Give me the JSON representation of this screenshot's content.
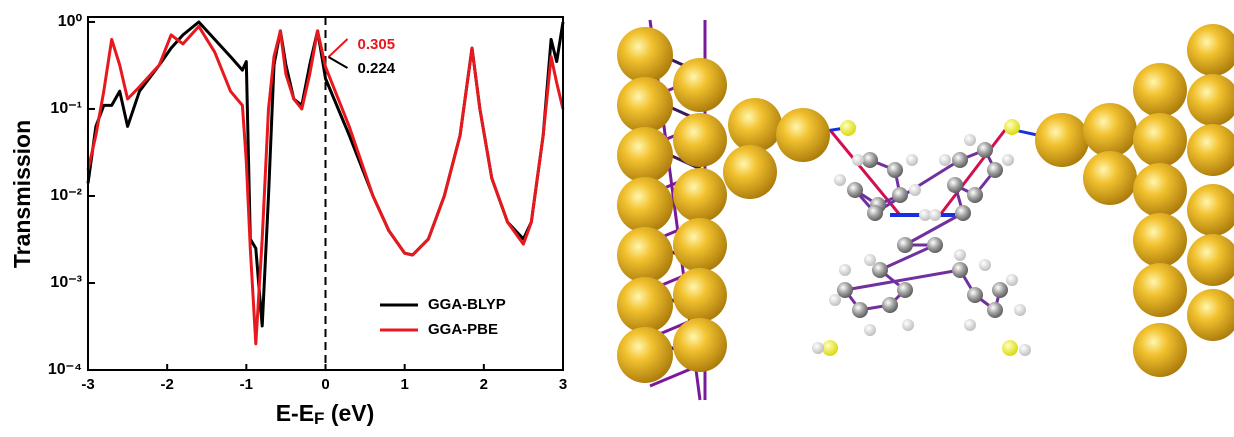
{
  "chart_data": {
    "type": "line",
    "x_label": {
      "main": "E-E",
      "sub": "F",
      "unit": " (eV)"
    },
    "y_label": "Transmission",
    "x": [
      -3,
      -2.9,
      -2.8,
      -2.7,
      -2.6,
      -2.5,
      -2.35,
      -2.1,
      -1.95,
      -1.8,
      -1.6,
      -1.4,
      -1.2,
      -1.05,
      -1.0,
      -0.95,
      -0.88,
      -0.8,
      -0.72,
      -0.65,
      -0.57,
      -0.5,
      -0.4,
      -0.3,
      -0.2,
      -0.1,
      0,
      0.3,
      0.6,
      0.8,
      1.0,
      1.1,
      1.3,
      1.5,
      1.7,
      1.85,
      1.95,
      2.1,
      2.3,
      2.5,
      2.6,
      2.75,
      2.85,
      2.92,
      3.0
    ],
    "series": [
      {
        "name": "GGA-BLYP",
        "color": "#000000",
        "values": [
          0.014,
          0.063,
          0.11,
          0.11,
          0.16,
          0.063,
          0.16,
          0.32,
          0.5,
          0.71,
          1.0,
          0.63,
          0.4,
          0.28,
          0.35,
          0.0032,
          0.0025,
          0.00032,
          0.01,
          0.32,
          0.79,
          0.32,
          0.13,
          0.11,
          0.32,
          0.79,
          0.224,
          0.05,
          0.01,
          0.004,
          0.0022,
          0.0021,
          0.0032,
          0.01,
          0.05,
          0.5,
          0.1,
          0.016,
          0.005,
          0.0032,
          0.005,
          0.05,
          0.63,
          0.35,
          1.0
        ]
      },
      {
        "name": "GGA-PBE",
        "color": "#e8191e",
        "values": [
          0.02,
          0.05,
          0.16,
          0.63,
          0.32,
          0.13,
          0.18,
          0.32,
          0.71,
          0.56,
          0.89,
          0.45,
          0.16,
          0.11,
          0.025,
          0.0025,
          0.0002,
          0.0032,
          0.1,
          0.4,
          0.79,
          0.25,
          0.13,
          0.1,
          0.25,
          0.79,
          0.305,
          0.063,
          0.01,
          0.004,
          0.0022,
          0.0021,
          0.0032,
          0.01,
          0.05,
          0.5,
          0.1,
          0.016,
          0.005,
          0.0028,
          0.005,
          0.05,
          0.4,
          0.2,
          0.1
        ]
      }
    ],
    "annotations": [
      {
        "text": "0.305",
        "color": "#e8191e"
      },
      {
        "text": "0.224",
        "color": "#000000"
      }
    ],
    "vline": 0,
    "xlim": [
      -3,
      3
    ],
    "xticks": [
      -3,
      -2,
      -1,
      0,
      1,
      2,
      3
    ],
    "ylim": [
      0.0001,
      1.14
    ],
    "log_y": true,
    "yticks": [
      {
        "value": 0.0001,
        "label": "10⁻⁴"
      },
      {
        "value": 0.001,
        "label": "10⁻³"
      },
      {
        "value": 0.01,
        "label": "10⁻²"
      },
      {
        "value": 0.1,
        "label": "10⁻¹"
      },
      {
        "value": 1,
        "label": "10⁰"
      }
    ],
    "legend": "lower right"
  }
}
